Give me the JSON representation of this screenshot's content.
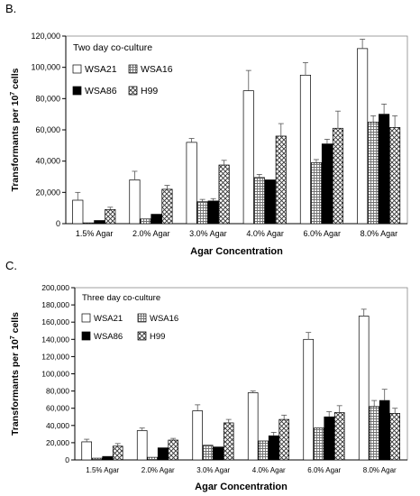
{
  "panels": [
    {
      "letter": "B."
    },
    {
      "letter": "C."
    }
  ],
  "patterns": {
    "WSA21": "white",
    "WSA16": "grid",
    "WSA86": "black",
    "H99": "crosshatch"
  },
  "chart_data": [
    {
      "type": "bar",
      "title": "Two day co-culture",
      "xlabel": "Agar Concentration",
      "ylabel": "Transformants per 10⁷ cells",
      "ylabel_main": "Transformants per 10",
      "ylabel_sup": "7",
      "ylabel_end": " cells",
      "categories": [
        "1.5% Agar",
        "2.0% Agar",
        "3.0% Agar",
        "4.0% Agar",
        "6.0% Agar",
        "8.0% Agar"
      ],
      "ylim": [
        0,
        120000
      ],
      "yticks": [
        "0",
        "20,000",
        "40,000",
        "60,000",
        "80,000",
        "100,000",
        "120,000"
      ],
      "legend_placement": "top-left",
      "series": [
        {
          "name": "WSA21",
          "values": [
            15000,
            28000,
            52000,
            85000,
            95000,
            112000
          ],
          "errors": [
            5000,
            5500,
            2500,
            13000,
            8000,
            6000
          ]
        },
        {
          "name": "WSA16",
          "values": [
            500,
            3000,
            14000,
            29500,
            39000,
            65000
          ],
          "errors": [
            0,
            0,
            1500,
            2000,
            2000,
            4000
          ]
        },
        {
          "name": "WSA86",
          "values": [
            2000,
            6000,
            14500,
            28000,
            51000,
            70000
          ],
          "errors": [
            0,
            0,
            1500,
            0,
            3000,
            6500
          ]
        },
        {
          "name": "H99",
          "values": [
            9000,
            22000,
            37500,
            56000,
            61000,
            61500
          ],
          "errors": [
            1500,
            2500,
            3000,
            8000,
            11000,
            7500
          ]
        }
      ]
    },
    {
      "type": "bar",
      "title": "Three day co-culture",
      "xlabel": "Agar Concentration",
      "ylabel": "Transformants per 10⁷ cells",
      "ylabel_main": "Transformants per 10",
      "ylabel_sup": "7",
      "ylabel_end": " cells",
      "categories": [
        "1.5% Agar",
        "2.0% Agar",
        "3.0% Agar",
        "4.0% Agar",
        "6.0% Agar",
        "8.0% Agar"
      ],
      "ylim": [
        0,
        200000
      ],
      "yticks": [
        "0",
        "20,000",
        "40,000",
        "60,000",
        "80,000",
        "100,000",
        "120,000",
        "140,000",
        "160,000",
        "180,000",
        "200,000"
      ],
      "legend_placement": "top-left",
      "series": [
        {
          "name": "WSA21",
          "values": [
            21000,
            34000,
            57000,
            78000,
            140000,
            167000
          ],
          "errors": [
            3000,
            3000,
            7000,
            2000,
            8000,
            8000
          ]
        },
        {
          "name": "WSA16",
          "values": [
            2000,
            3000,
            17000,
            22000,
            37000,
            62000
          ],
          "errors": [
            0,
            0,
            0,
            0,
            0,
            7000
          ]
        },
        {
          "name": "WSA86",
          "values": [
            4000,
            14000,
            15000,
            28000,
            50000,
            69000
          ],
          "errors": [
            0,
            0,
            0,
            4000,
            6000,
            13000
          ]
        },
        {
          "name": "H99",
          "values": [
            16000,
            23000,
            43000,
            47000,
            55000,
            54000
          ],
          "errors": [
            3000,
            2000,
            4000,
            5000,
            8000,
            6000
          ]
        }
      ]
    }
  ]
}
